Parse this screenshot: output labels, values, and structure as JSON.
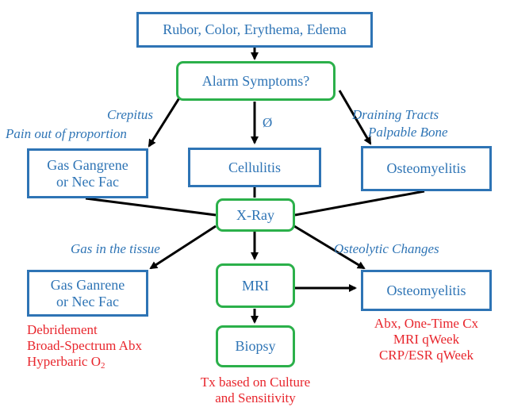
{
  "nodes": {
    "top": "Rubor, Color, Erythema, Edema",
    "alarm": "Alarm Symptoms?",
    "gas_gangrene_1": [
      "Gas Gangrene",
      "or Nec Fac"
    ],
    "cellulitis": "Cellulitis",
    "osteomyelitis_1": "Osteomyelitis",
    "xray": "X-Ray",
    "gas_gangrene_2": [
      "Gas Ganrene",
      "or Nec Fac"
    ],
    "mri": "MRI",
    "osteomyelitis_2": "Osteomyelitis",
    "biopsy": "Biopsy"
  },
  "edge_labels": {
    "crepitus": "Crepitus",
    "pain": "Pain out of proportion",
    "none": "Ø",
    "draining": "Draining Tracts",
    "palpable": "Palpable Bone",
    "gas_tissue": "Gas in the tissue",
    "osteolytic": "Osteolytic Changes"
  },
  "treatments": {
    "gas": {
      "line1": "Debridement",
      "line2": "Broad-Spectrum Abx",
      "line3_main": "Hyperbaric O",
      "line3_sub": "2"
    },
    "biopsy": [
      "Tx based on Culture",
      "and Sensitivity"
    ],
    "osteo": [
      "Abx, One-Time Cx",
      "MRI qWeek",
      "CRP/ESR qWeek"
    ]
  },
  "colors": {
    "node_blue": "#2e74b5",
    "decision_green": "#2bb04a",
    "treatment_red": "#e8262d",
    "arrow": "#000000"
  }
}
